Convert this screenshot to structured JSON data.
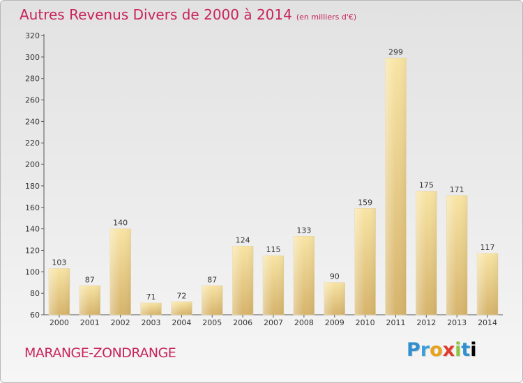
{
  "title": "Autres Revenus Divers de 2000 à 2014",
  "subtitle": "(en milliers d'€)",
  "city": "MARANGE-ZONDRANGE",
  "logo": "Proxiti",
  "colors": {
    "title": "#c8245a",
    "bar_light": "#f7e2a0",
    "bar_dark": "#d9b770",
    "axis": "#444444"
  },
  "chart_data": {
    "type": "bar",
    "title": "Autres Revenus Divers de 2000 à 2014",
    "subtitle": "(en milliers d'€)",
    "categories": [
      "2000",
      "2001",
      "2002",
      "2003",
      "2004",
      "2005",
      "2006",
      "2007",
      "2008",
      "2009",
      "2010",
      "2011",
      "2012",
      "2013",
      "2014"
    ],
    "values": [
      103,
      87,
      140,
      71,
      72,
      87,
      124,
      115,
      133,
      90,
      159,
      299,
      175,
      171,
      117
    ],
    "ylim": [
      60,
      320
    ],
    "yticks": [
      60,
      80,
      100,
      120,
      140,
      160,
      180,
      200,
      220,
      240,
      260,
      280,
      300,
      320
    ],
    "grid": false,
    "data_labels": true
  }
}
